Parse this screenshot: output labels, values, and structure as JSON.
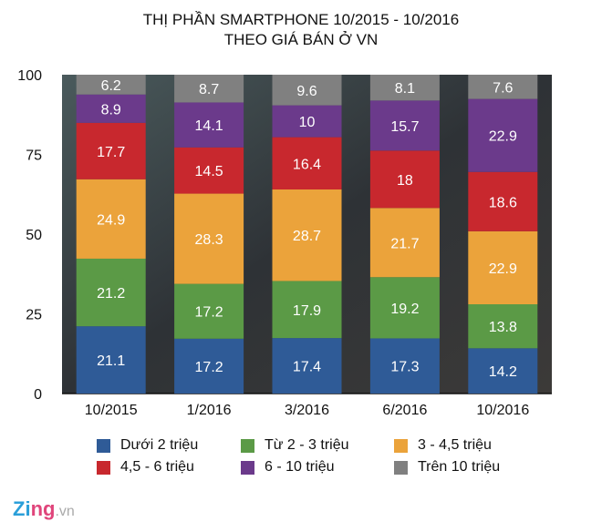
{
  "chart_data": {
    "type": "bar",
    "stacked": true,
    "title": "THỊ PHẦN SMARTPHONE 10/2015 - 10/2016",
    "subtitle": "THEO GIÁ BÁN Ở VN",
    "categories": [
      "10/2015",
      "1/2016",
      "3/2016",
      "6/2016",
      "10/2016"
    ],
    "ylim": [
      0,
      100
    ],
    "yticks": [
      "0",
      "25",
      "50",
      "75",
      "100"
    ],
    "grid": false,
    "legend_position": "bottom",
    "series": [
      {
        "name": "Dưới 2 triệu",
        "color": "#2f5b97",
        "values": [
          21.1,
          17.2,
          17.4,
          17.3,
          14.2
        ]
      },
      {
        "name": "Từ 2 - 3 triệu",
        "color": "#5b9a46",
        "values": [
          21.2,
          17.2,
          17.9,
          19.2,
          13.8
        ]
      },
      {
        "name": "3 - 4,5 triệu",
        "color": "#eba33b",
        "values": [
          24.9,
          28.3,
          28.7,
          21.7,
          22.9
        ]
      },
      {
        "name": "4,5 - 6 triệu",
        "color": "#c8282e",
        "values": [
          17.7,
          14.5,
          16.4,
          18,
          18.6
        ]
      },
      {
        "name": "6 - 10 triệu",
        "color": "#6b3a8b",
        "values": [
          8.9,
          14.1,
          10,
          15.7,
          22.9
        ]
      },
      {
        "name": "Trên 10 triệu",
        "color": "#808080",
        "values": [
          6.2,
          8.7,
          9.6,
          8.1,
          7.6
        ]
      }
    ]
  },
  "logo": {
    "brand": "Zing",
    "suffix": ".vn"
  }
}
